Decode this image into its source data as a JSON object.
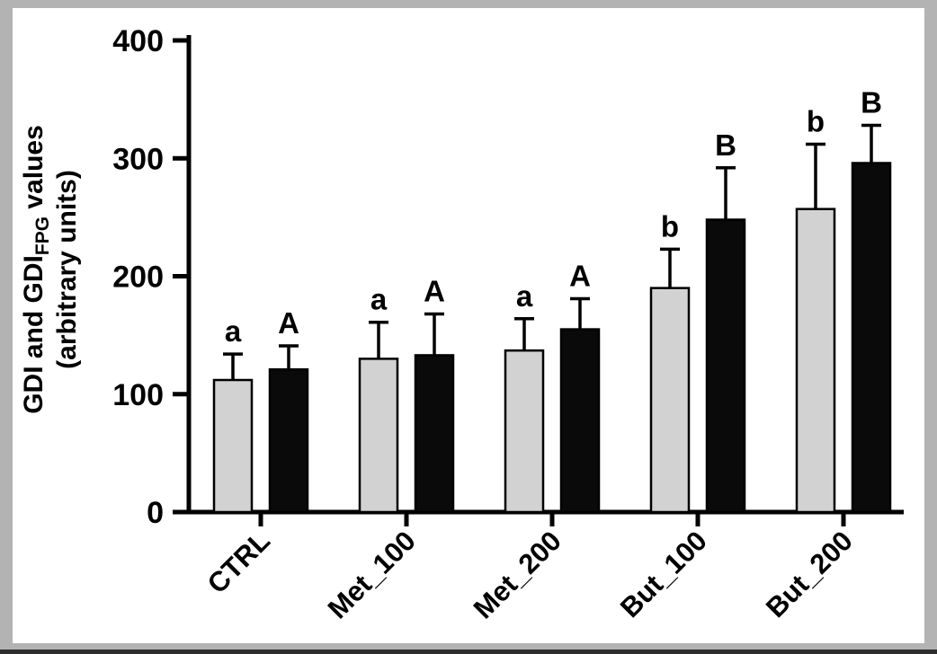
{
  "chart_data": {
    "type": "bar",
    "title": "",
    "ylabel_line1_prefix": "GDI and GDI",
    "ylabel_subscript": "FPG",
    "ylabel_line1_suffix": " values",
    "ylabel_line2": "(arbitrary units)",
    "xlabel": "",
    "categories": [
      "CTRL",
      "Met_100",
      "Met_200",
      "But_100",
      "But_200"
    ],
    "series": [
      {
        "name": "GDI",
        "color": "#d2d2d2",
        "values": [
          112,
          130,
          137,
          190,
          257
        ],
        "errors_plus": [
          22,
          31,
          27,
          33,
          55
        ],
        "sig_labels": [
          "a",
          "a",
          "a",
          "b",
          "b"
        ]
      },
      {
        "name": "GDI_FPG",
        "color": "#0a0a0a",
        "values": [
          121,
          133,
          155,
          248,
          296
        ],
        "errors_plus": [
          20,
          35,
          26,
          44,
          32
        ],
        "sig_labels": [
          "A",
          "A",
          "A",
          "B",
          "B"
        ]
      }
    ],
    "ylim": [
      0,
      400
    ],
    "yticks": [
      0,
      100,
      200,
      300,
      400
    ],
    "grid": false,
    "legend": "none"
  },
  "colors": {
    "frame": "#b3b3b3",
    "panel": "#ffffff",
    "axis": "#000000",
    "text": "#000000",
    "bottom_edge": "#2e2e2e"
  }
}
